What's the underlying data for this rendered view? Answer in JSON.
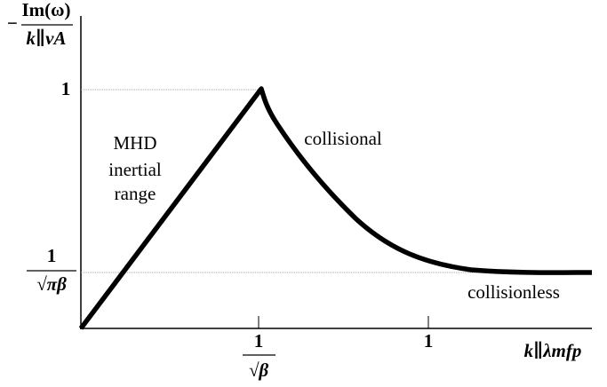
{
  "y_axis": {
    "sign": "−",
    "label_numerator": "Im(ω)",
    "label_denominator": "k∥vA",
    "tick_top": "1",
    "tick_bottom_numerator": "1",
    "tick_bottom_denominator": "√πβ"
  },
  "x_axis": {
    "label": "k∥λmfp",
    "tick_left_numerator": "1",
    "tick_left_denominator": "√β",
    "tick_right": "1"
  },
  "annotations": {
    "mhd": [
      "MHD",
      "inertial",
      "range"
    ],
    "collisional": "collisional",
    "collisionless": "collisionless"
  }
}
